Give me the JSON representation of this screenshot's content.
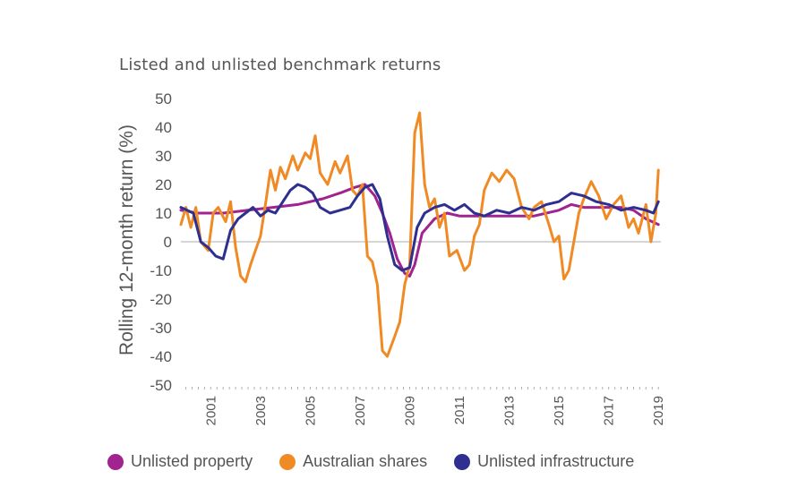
{
  "chart_data": {
    "type": "line",
    "title": "Listed and unlisted benchmark returns",
    "xlabel": "",
    "ylabel": "Rolling 12-month return (%)",
    "ylim": [
      -50,
      50
    ],
    "xlim": [
      1999.8,
      2019.1
    ],
    "yticks": [
      50,
      40,
      30,
      20,
      10,
      0,
      -10,
      -20,
      -30,
      -40,
      -50
    ],
    "xticks": [
      "2001",
      "2003",
      "2005",
      "2007",
      "2009",
      "2011",
      "2013",
      "2015",
      "2017",
      "2019"
    ],
    "xtick_values": [
      2001,
      2003,
      2005,
      2007,
      2009,
      2011,
      2013,
      2015,
      2017,
      2019
    ],
    "legend_position": "bottom",
    "series": [
      {
        "name": "Unlisted property",
        "color": "#a0238f",
        "x": [
          1999.8,
          2000.5,
          2001.5,
          2002.5,
          2003.5,
          2004.5,
          2005.5,
          2006.2,
          2006.8,
          2007.2,
          2007.6,
          2007.9,
          2008.2,
          2008.5,
          2008.8,
          2009.0,
          2009.2,
          2009.5,
          2010.0,
          2010.5,
          2011.0,
          2012.0,
          2013.0,
          2014.0,
          2015.0,
          2015.5,
          2016.0,
          2016.5,
          2017.0,
          2017.5,
          2018.0,
          2018.5,
          2019.0
        ],
        "values": [
          11,
          10,
          10,
          11,
          12,
          13,
          15,
          17,
          19,
          20,
          16,
          10,
          3,
          -6,
          -11,
          -12,
          -8,
          3,
          8,
          10,
          9,
          9,
          9,
          9,
          11,
          13,
          12,
          12,
          12,
          12,
          11,
          8,
          6
        ]
      },
      {
        "name": "Australian shares",
        "color": "#f08a24",
        "x": [
          1999.8,
          2000.0,
          2000.2,
          2000.4,
          2000.6,
          2000.9,
          2001.1,
          2001.3,
          2001.6,
          2001.8,
          2002.0,
          2002.2,
          2002.4,
          2002.6,
          2002.8,
          2003.0,
          2003.2,
          2003.4,
          2003.6,
          2003.8,
          2004.0,
          2004.3,
          2004.5,
          2004.8,
          2005.0,
          2005.2,
          2005.4,
          2005.7,
          2006.0,
          2006.2,
          2006.5,
          2006.7,
          2006.9,
          2007.1,
          2007.3,
          2007.5,
          2007.7,
          2007.9,
          2008.1,
          2008.4,
          2008.6,
          2008.8,
          2009.0,
          2009.2,
          2009.4,
          2009.6,
          2009.8,
          2010.0,
          2010.2,
          2010.4,
          2010.6,
          2010.9,
          2011.2,
          2011.4,
          2011.6,
          2011.8,
          2012.0,
          2012.3,
          2012.6,
          2012.9,
          2013.2,
          2013.5,
          2013.8,
          2014.0,
          2014.3,
          2014.6,
          2014.8,
          2015.0,
          2015.2,
          2015.4,
          2015.6,
          2015.8,
          2016.0,
          2016.3,
          2016.6,
          2016.9,
          2017.2,
          2017.5,
          2017.8,
          2018.0,
          2018.2,
          2018.5,
          2018.7,
          2018.9,
          2019.0
        ],
        "values": [
          6,
          12,
          5,
          12,
          0,
          -3,
          10,
          12,
          7,
          14,
          -2,
          -12,
          -14,
          -8,
          -3,
          2,
          13,
          25,
          18,
          26,
          22,
          30,
          25,
          31,
          29,
          37,
          24,
          20,
          28,
          24,
          30,
          18,
          16,
          20,
          -5,
          -7,
          -15,
          -38,
          -40,
          -33,
          -28,
          -15,
          -8,
          38,
          45,
          20,
          12,
          15,
          5,
          10,
          -5,
          -3,
          -10,
          -8,
          2,
          6,
          18,
          24,
          21,
          25,
          22,
          12,
          8,
          12,
          14,
          6,
          0,
          2,
          -13,
          -10,
          0,
          10,
          15,
          21,
          16,
          8,
          13,
          16,
          5,
          8,
          3,
          13,
          0,
          10,
          25
        ]
      },
      {
        "name": "Unlisted infrastructure",
        "color": "#2e2f8f",
        "x": [
          1999.8,
          2000.3,
          2000.6,
          2000.9,
          2001.2,
          2001.5,
          2001.8,
          2002.1,
          2002.4,
          2002.7,
          2003.0,
          2003.3,
          2003.6,
          2003.9,
          2004.2,
          2004.5,
          2004.8,
          2005.1,
          2005.4,
          2005.8,
          2006.2,
          2006.6,
          2006.9,
          2007.2,
          2007.5,
          2007.8,
          2008.1,
          2008.4,
          2008.7,
          2009.0,
          2009.3,
          2009.6,
          2010.0,
          2010.4,
          2010.8,
          2011.2,
          2011.6,
          2012.0,
          2012.5,
          2013.0,
          2013.5,
          2014.0,
          2014.5,
          2015.0,
          2015.5,
          2016.0,
          2016.5,
          2017.0,
          2017.5,
          2018.0,
          2018.5,
          2018.8,
          2019.0
        ],
        "values": [
          12,
          10,
          0,
          -2,
          -5,
          -6,
          4,
          8,
          10,
          12,
          9,
          11,
          10,
          14,
          18,
          20,
          19,
          17,
          12,
          10,
          11,
          12,
          16,
          19,
          20,
          15,
          2,
          -8,
          -10,
          -9,
          5,
          10,
          12,
          13,
          11,
          13,
          10,
          9,
          11,
          10,
          12,
          11,
          13,
          14,
          17,
          16,
          14,
          13,
          11,
          12,
          11,
          10,
          14
        ]
      }
    ]
  }
}
